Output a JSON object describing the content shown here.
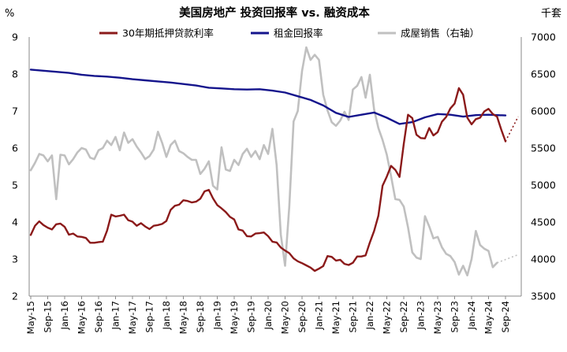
{
  "chart_data": {
    "type": "line",
    "title": "美国房地产 投资回报率 vs. 融资成本",
    "ylabel_left_unit": "%",
    "ylabel_right_unit": "千套",
    "ylim_left": [
      2,
      9
    ],
    "ylim_right": [
      3500,
      7000
    ],
    "yticks_left": [
      "2",
      "3",
      "4",
      "5",
      "6",
      "7",
      "8",
      "9"
    ],
    "yticks_right": [
      "3500",
      "4000",
      "4500",
      "5000",
      "5500",
      "6000",
      "6500",
      "7000"
    ],
    "x_start": "2015-05",
    "x_end": "2024-09",
    "xticks": [
      "May-15",
      "Sep-15",
      "Jan-16",
      "May-16",
      "Sep-16",
      "Jan-17",
      "May-17",
      "Sep-17",
      "Jan-18",
      "May-18",
      "Sep-18",
      "Jan-19",
      "May-19",
      "Sep-19",
      "Jan-20",
      "May-20",
      "Sep-20",
      "Jan-21",
      "May-21",
      "Sep-21",
      "Jan-22",
      "May-22",
      "Sep-22",
      "Jan-23",
      "May-23",
      "Sep-23",
      "Jan-24",
      "May-24",
      "Sep-24"
    ],
    "grid": false,
    "legend_position": "top",
    "series": [
      {
        "name": "30年期抵押贷款利率",
        "axis": "left",
        "color": "#8b1a1a",
        "points": [
          [
            "2015-05",
            3.65
          ],
          [
            "2015-06",
            3.9
          ],
          [
            "2015-07",
            4.02
          ],
          [
            "2015-08",
            3.92
          ],
          [
            "2015-09",
            3.85
          ],
          [
            "2015-10",
            3.8
          ],
          [
            "2015-11",
            3.94
          ],
          [
            "2015-12",
            3.96
          ],
          [
            "2016-01",
            3.87
          ],
          [
            "2016-02",
            3.66
          ],
          [
            "2016-03",
            3.69
          ],
          [
            "2016-04",
            3.61
          ],
          [
            "2016-05",
            3.6
          ],
          [
            "2016-06",
            3.57
          ],
          [
            "2016-07",
            3.44
          ],
          [
            "2016-08",
            3.44
          ],
          [
            "2016-09",
            3.46
          ],
          [
            "2016-10",
            3.47
          ],
          [
            "2016-11",
            3.77
          ],
          [
            "2016-12",
            4.2
          ],
          [
            "2017-01",
            4.15
          ],
          [
            "2017-02",
            4.17
          ],
          [
            "2017-03",
            4.2
          ],
          [
            "2017-04",
            4.05
          ],
          [
            "2017-05",
            4.01
          ],
          [
            "2017-06",
            3.9
          ],
          [
            "2017-07",
            3.97
          ],
          [
            "2017-08",
            3.88
          ],
          [
            "2017-09",
            3.81
          ],
          [
            "2017-10",
            3.9
          ],
          [
            "2017-11",
            3.92
          ],
          [
            "2017-12",
            3.95
          ],
          [
            "2018-01",
            4.03
          ],
          [
            "2018-02",
            4.33
          ],
          [
            "2018-03",
            4.44
          ],
          [
            "2018-04",
            4.47
          ],
          [
            "2018-05",
            4.59
          ],
          [
            "2018-06",
            4.57
          ],
          [
            "2018-07",
            4.53
          ],
          [
            "2018-08",
            4.55
          ],
          [
            "2018-09",
            4.63
          ],
          [
            "2018-10",
            4.83
          ],
          [
            "2018-11",
            4.87
          ],
          [
            "2018-12",
            4.64
          ],
          [
            "2019-01",
            4.46
          ],
          [
            "2019-02",
            4.37
          ],
          [
            "2019-03",
            4.27
          ],
          [
            "2019-04",
            4.14
          ],
          [
            "2019-05",
            4.07
          ],
          [
            "2019-06",
            3.8
          ],
          [
            "2019-07",
            3.77
          ],
          [
            "2019-08",
            3.62
          ],
          [
            "2019-09",
            3.61
          ],
          [
            "2019-10",
            3.69
          ],
          [
            "2019-11",
            3.7
          ],
          [
            "2019-12",
            3.72
          ],
          [
            "2020-01",
            3.62
          ],
          [
            "2020-02",
            3.47
          ],
          [
            "2020-03",
            3.45
          ],
          [
            "2020-04",
            3.31
          ],
          [
            "2020-05",
            3.23
          ],
          [
            "2020-06",
            3.16
          ],
          [
            "2020-07",
            3.02
          ],
          [
            "2020-08",
            2.94
          ],
          [
            "2020-09",
            2.89
          ],
          [
            "2020-10",
            2.83
          ],
          [
            "2020-11",
            2.77
          ],
          [
            "2020-12",
            2.68
          ],
          [
            "2021-01",
            2.74
          ],
          [
            "2021-02",
            2.81
          ],
          [
            "2021-03",
            3.08
          ],
          [
            "2021-04",
            3.06
          ],
          [
            "2021-05",
            2.96
          ],
          [
            "2021-06",
            2.98
          ],
          [
            "2021-07",
            2.87
          ],
          [
            "2021-08",
            2.84
          ],
          [
            "2021-09",
            2.9
          ],
          [
            "2021-10",
            3.07
          ],
          [
            "2021-11",
            3.07
          ],
          [
            "2021-12",
            3.1
          ],
          [
            "2022-01",
            3.45
          ],
          [
            "2022-02",
            3.76
          ],
          [
            "2022-03",
            4.17
          ],
          [
            "2022-04",
            4.98
          ],
          [
            "2022-05",
            5.23
          ],
          [
            "2022-06",
            5.52
          ],
          [
            "2022-07",
            5.41
          ],
          [
            "2022-08",
            5.22
          ],
          [
            "2022-09",
            6.11
          ],
          [
            "2022-10",
            6.9
          ],
          [
            "2022-11",
            6.81
          ],
          [
            "2022-12",
            6.36
          ],
          [
            "2023-01",
            6.27
          ],
          [
            "2023-02",
            6.26
          ],
          [
            "2023-03",
            6.54
          ],
          [
            "2023-04",
            6.34
          ],
          [
            "2023-05",
            6.43
          ],
          [
            "2023-06",
            6.71
          ],
          [
            "2023-07",
            6.84
          ],
          [
            "2023-08",
            7.07
          ],
          [
            "2023-09",
            7.2
          ],
          [
            "2023-10",
            7.62
          ],
          [
            "2023-11",
            7.44
          ],
          [
            "2023-12",
            6.82
          ],
          [
            "2024-01",
            6.64
          ],
          [
            "2024-02",
            6.78
          ],
          [
            "2024-03",
            6.82
          ],
          [
            "2024-04",
            6.99
          ],
          [
            "2024-05",
            7.06
          ],
          [
            "2024-06",
            6.92
          ],
          [
            "2024-07",
            6.85
          ],
          [
            "2024-08",
            6.5
          ],
          [
            "2024-09",
            6.18
          ]
        ]
      },
      {
        "name": "租金回报率",
        "axis": "left",
        "color": "#14148c",
        "points": [
          [
            "2015-05",
            8.12
          ],
          [
            "2015-08",
            8.09
          ],
          [
            "2015-11",
            8.06
          ],
          [
            "2016-02",
            8.03
          ],
          [
            "2016-05",
            7.98
          ],
          [
            "2016-08",
            7.95
          ],
          [
            "2016-11",
            7.93
          ],
          [
            "2017-02",
            7.9
          ],
          [
            "2017-05",
            7.86
          ],
          [
            "2017-08",
            7.83
          ],
          [
            "2017-11",
            7.8
          ],
          [
            "2018-02",
            7.77
          ],
          [
            "2018-05",
            7.73
          ],
          [
            "2018-08",
            7.69
          ],
          [
            "2018-11",
            7.63
          ],
          [
            "2019-02",
            7.61
          ],
          [
            "2019-05",
            7.59
          ],
          [
            "2019-08",
            7.58
          ],
          [
            "2019-11",
            7.59
          ],
          [
            "2020-02",
            7.55
          ],
          [
            "2020-05",
            7.5
          ],
          [
            "2020-08",
            7.4
          ],
          [
            "2020-11",
            7.3
          ],
          [
            "2021-02",
            7.15
          ],
          [
            "2021-05",
            6.95
          ],
          [
            "2021-08",
            6.84
          ],
          [
            "2021-11",
            6.9
          ],
          [
            "2022-02",
            6.96
          ],
          [
            "2022-05",
            6.82
          ],
          [
            "2022-08",
            6.65
          ],
          [
            "2022-11",
            6.7
          ],
          [
            "2023-02",
            6.83
          ],
          [
            "2023-05",
            6.92
          ],
          [
            "2023-08",
            6.9
          ],
          [
            "2023-11",
            6.85
          ],
          [
            "2024-02",
            6.89
          ],
          [
            "2024-05",
            6.9
          ],
          [
            "2024-09",
            6.88
          ]
        ]
      },
      {
        "name": "成屋销售（右轴）",
        "axis": "right",
        "color": "#c0c0c0",
        "points": [
          [
            "2015-05",
            5200
          ],
          [
            "2015-06",
            5300
          ],
          [
            "2015-07",
            5420
          ],
          [
            "2015-08",
            5400
          ],
          [
            "2015-09",
            5320
          ],
          [
            "2015-10",
            5400
          ],
          [
            "2015-11",
            4810
          ],
          [
            "2015-12",
            5410
          ],
          [
            "2016-01",
            5400
          ],
          [
            "2016-02",
            5280
          ],
          [
            "2016-03",
            5350
          ],
          [
            "2016-04",
            5440
          ],
          [
            "2016-05",
            5500
          ],
          [
            "2016-06",
            5480
          ],
          [
            "2016-07",
            5370
          ],
          [
            "2016-08",
            5350
          ],
          [
            "2016-09",
            5470
          ],
          [
            "2016-10",
            5500
          ],
          [
            "2016-11",
            5600
          ],
          [
            "2016-12",
            5540
          ],
          [
            "2017-01",
            5650
          ],
          [
            "2017-02",
            5470
          ],
          [
            "2017-03",
            5710
          ],
          [
            "2017-04",
            5570
          ],
          [
            "2017-05",
            5620
          ],
          [
            "2017-06",
            5520
          ],
          [
            "2017-07",
            5440
          ],
          [
            "2017-08",
            5350
          ],
          [
            "2017-09",
            5390
          ],
          [
            "2017-10",
            5480
          ],
          [
            "2017-11",
            5720
          ],
          [
            "2017-12",
            5570
          ],
          [
            "2018-01",
            5380
          ],
          [
            "2018-02",
            5540
          ],
          [
            "2018-03",
            5600
          ],
          [
            "2018-04",
            5460
          ],
          [
            "2018-05",
            5430
          ],
          [
            "2018-06",
            5380
          ],
          [
            "2018-07",
            5340
          ],
          [
            "2018-08",
            5340
          ],
          [
            "2018-09",
            5150
          ],
          [
            "2018-10",
            5220
          ],
          [
            "2018-11",
            5320
          ],
          [
            "2018-12",
            4990
          ],
          [
            "2019-01",
            4940
          ],
          [
            "2019-02",
            5510
          ],
          [
            "2019-03",
            5210
          ],
          [
            "2019-04",
            5190
          ],
          [
            "2019-05",
            5340
          ],
          [
            "2019-06",
            5270
          ],
          [
            "2019-07",
            5420
          ],
          [
            "2019-08",
            5490
          ],
          [
            "2019-09",
            5380
          ],
          [
            "2019-10",
            5460
          ],
          [
            "2019-11",
            5350
          ],
          [
            "2019-12",
            5540
          ],
          [
            "2020-01",
            5420
          ],
          [
            "2020-02",
            5760
          ],
          [
            "2020-03",
            5270
          ],
          [
            "2020-04",
            4330
          ],
          [
            "2020-05",
            3910
          ],
          [
            "2020-06",
            4720
          ],
          [
            "2020-07",
            5860
          ],
          [
            "2020-08",
            6000
          ],
          [
            "2020-09",
            6540
          ],
          [
            "2020-10",
            6860
          ],
          [
            "2020-11",
            6690
          ],
          [
            "2020-12",
            6760
          ],
          [
            "2021-01",
            6690
          ],
          [
            "2021-02",
            6220
          ],
          [
            "2021-03",
            6010
          ],
          [
            "2021-04",
            5850
          ],
          [
            "2021-05",
            5800
          ],
          [
            "2021-06",
            5870
          ],
          [
            "2021-07",
            5990
          ],
          [
            "2021-08",
            5880
          ],
          [
            "2021-09",
            6290
          ],
          [
            "2021-10",
            6340
          ],
          [
            "2021-11",
            6460
          ],
          [
            "2021-12",
            6180
          ],
          [
            "2022-01",
            6490
          ],
          [
            "2022-02",
            6020
          ],
          [
            "2022-03",
            5770
          ],
          [
            "2022-04",
            5610
          ],
          [
            "2022-05",
            5410
          ],
          [
            "2022-06",
            5120
          ],
          [
            "2022-07",
            4810
          ],
          [
            "2022-08",
            4800
          ],
          [
            "2022-09",
            4710
          ],
          [
            "2022-10",
            4430
          ],
          [
            "2022-11",
            4090
          ],
          [
            "2022-12",
            4020
          ],
          [
            "2023-01",
            4000
          ],
          [
            "2023-02",
            4580
          ],
          [
            "2023-03",
            4440
          ],
          [
            "2023-04",
            4280
          ],
          [
            "2023-05",
            4300
          ],
          [
            "2023-06",
            4160
          ],
          [
            "2023-07",
            4070
          ],
          [
            "2023-08",
            4040
          ],
          [
            "2023-09",
            3960
          ],
          [
            "2023-10",
            3790
          ],
          [
            "2023-11",
            3910
          ],
          [
            "2023-12",
            3780
          ],
          [
            "2024-01",
            4000
          ],
          [
            "2024-02",
            4380
          ],
          [
            "2024-03",
            4190
          ],
          [
            "2024-04",
            4140
          ],
          [
            "2024-05",
            4110
          ],
          [
            "2024-06",
            3890
          ],
          [
            "2024-07",
            3950
          ]
        ]
      }
    ],
    "projections": [
      {
        "series": "30年期抵押贷款利率",
        "axis": "left",
        "color": "#8b1a1a",
        "points": [
          [
            "2024-09",
            6.18
          ],
          [
            "2024-12",
            6.85
          ]
        ]
      },
      {
        "series": "成屋销售（右轴）",
        "axis": "right",
        "color": "#c0c0c0",
        "points": [
          [
            "2024-07",
            3950
          ],
          [
            "2024-12",
            4060
          ]
        ]
      }
    ]
  }
}
